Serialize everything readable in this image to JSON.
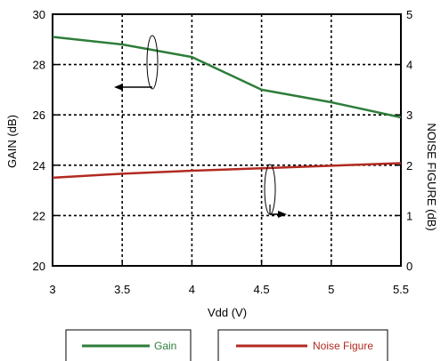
{
  "chart_data": {
    "type": "line",
    "xlabel": "Vdd (V)",
    "ylabel_left": "GAIN (dB)",
    "ylabel_right": "NOISE FIGURE (dB)",
    "xlim": [
      3,
      5.5
    ],
    "ylim_left": [
      20,
      30
    ],
    "ylim_right": [
      0,
      5
    ],
    "x_ticks": [
      "3",
      "3.5",
      "4",
      "4.5",
      "5",
      "5.5"
    ],
    "y_left_ticks": [
      "20",
      "22",
      "24",
      "26",
      "28",
      "30"
    ],
    "y_right_ticks": [
      "0",
      "1",
      "2",
      "3",
      "4",
      "5"
    ],
    "grid": true,
    "legend_position": "bottom",
    "series": [
      {
        "name": "Gain",
        "axis": "left",
        "color": "#2e7d3a",
        "x": [
          3.0,
          3.5,
          4.0,
          4.5,
          5.0,
          5.5
        ],
        "y": [
          29.1,
          28.8,
          28.3,
          27.0,
          26.5,
          25.9
        ]
      },
      {
        "name": "Noise Figure",
        "axis": "right",
        "color": "#b22a22",
        "x": [
          3.0,
          3.5,
          4.0,
          4.5,
          5.0,
          5.5
        ],
        "y": [
          1.75,
          1.83,
          1.89,
          1.94,
          1.99,
          2.04
        ]
      }
    ]
  }
}
